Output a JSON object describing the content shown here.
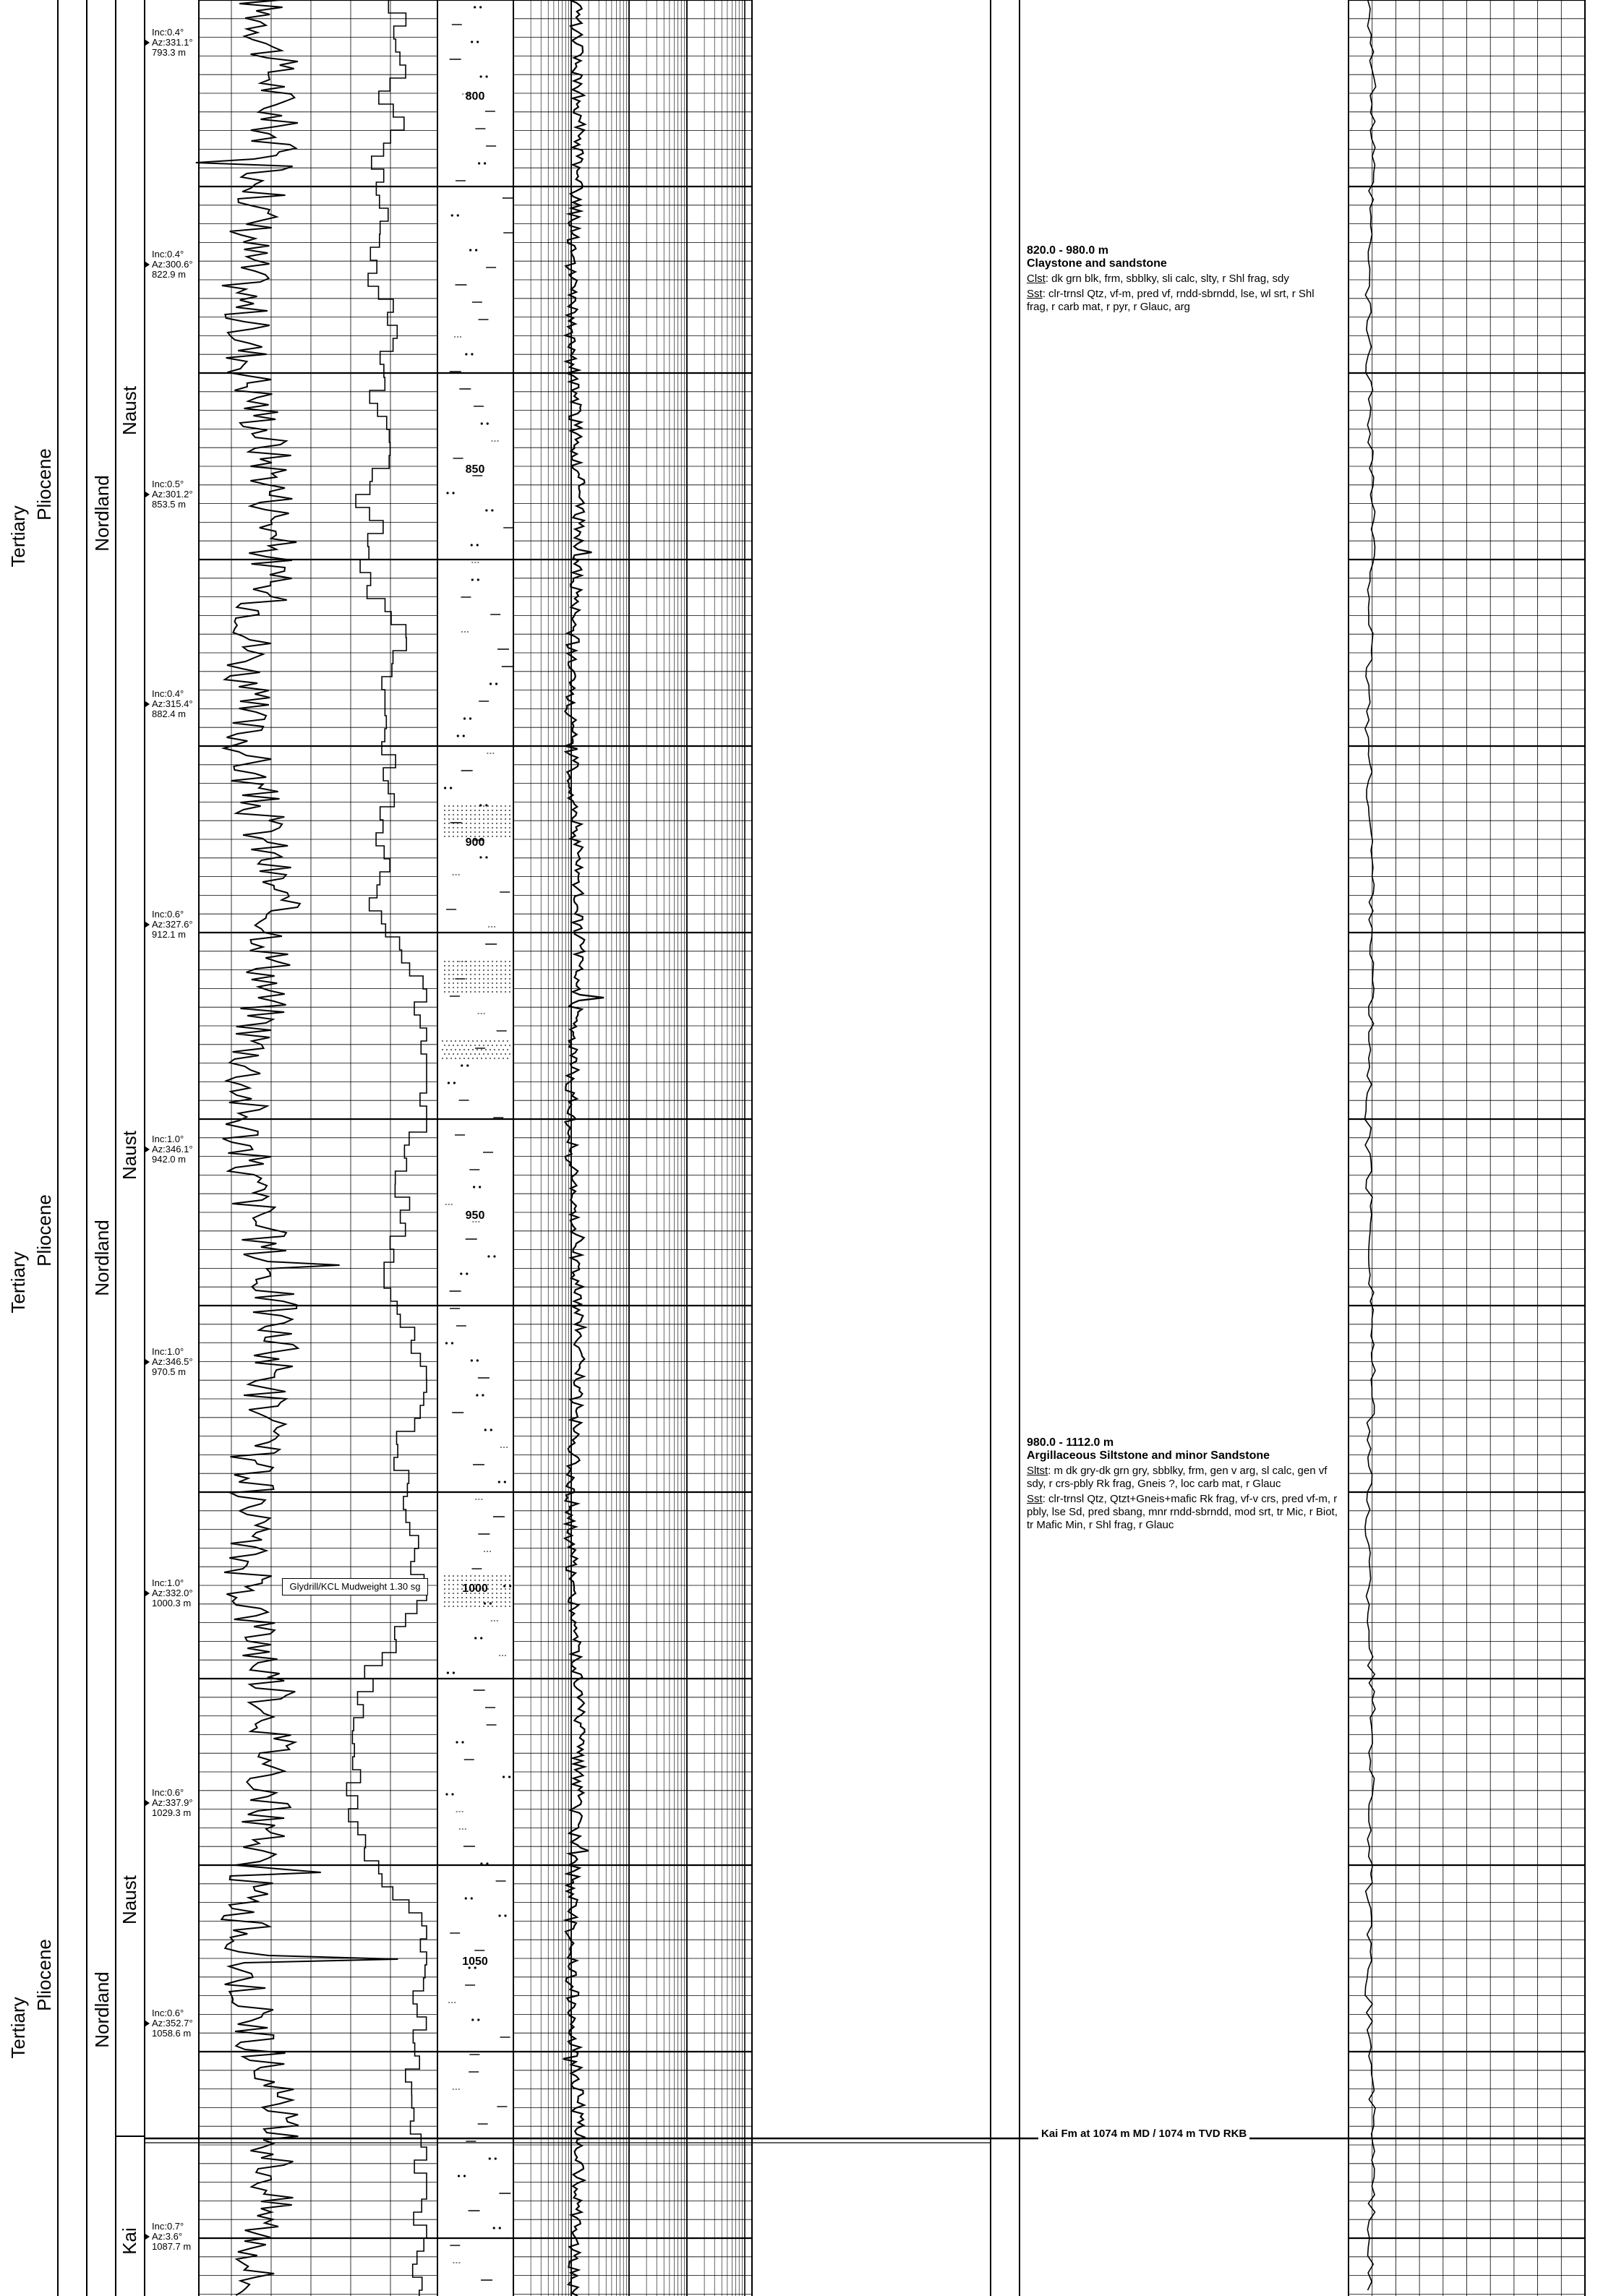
{
  "zones": [
    {
      "era": "Tertiary",
      "epoch": "Pliocene",
      "group": "Nordland",
      "formation": "Naust"
    },
    {
      "era": "Tertiary",
      "epoch": "Pliocene",
      "group": "Nordland",
      "formation": "Naust"
    },
    {
      "era": "Tertiary",
      "epoch": "Pliocene",
      "group": "Nordland",
      "formation": "Naust"
    },
    {
      "formation": "Kai"
    }
  ],
  "surveys": [
    {
      "inc": "Inc:0.4°",
      "az": "Az:331.1°",
      "md": "793.3 m"
    },
    {
      "inc": "Inc:0.4°",
      "az": "Az:300.6°",
      "md": "822.9 m"
    },
    {
      "inc": "Inc:0.5°",
      "az": "Az:301.2°",
      "md": "853.5 m"
    },
    {
      "inc": "Inc:0.4°",
      "az": "Az:315.4°",
      "md": "882.4 m"
    },
    {
      "inc": "Inc:0.6°",
      "az": "Az:327.6°",
      "md": "912.1 m"
    },
    {
      "inc": "Inc:1.0°",
      "az": "Az:346.1°",
      "md": "942.0 m"
    },
    {
      "inc": "Inc:1.0°",
      "az": "Az:346.5°",
      "md": "970.5 m"
    },
    {
      "inc": "Inc:1.0°",
      "az": "Az:332.0°",
      "md": "1000.3 m"
    },
    {
      "inc": "Inc:0.6°",
      "az": "Az:337.9°",
      "md": "1029.3 m"
    },
    {
      "inc": "Inc:0.6°",
      "az": "Az:352.7°",
      "md": "1058.6 m"
    },
    {
      "inc": "Inc:0.7°",
      "az": "Az:3.6°",
      "md": "1087.7 m"
    }
  ],
  "depth_labels": [
    "800",
    "850",
    "900",
    "950",
    "1000",
    "1050"
  ],
  "mud_note": "Glydrill/KCL Mudweight 1.30 sg",
  "descriptions": [
    {
      "range": "820.0 - 980.0 m",
      "title": "Claystone  and sandstone",
      "lines": [
        {
          "abbr": "Clst",
          "text": ": dk grn blk, frm, sbblky, sli calc, slty, r Shl frag, sdy"
        },
        {
          "abbr": "Sst",
          "text": ": clr-trnsl Qtz, vf-m, pred vf, rndd-sbrndd, lse, wl srt, r Shl frag, r carb mat, r pyr, r Glauc, arg"
        }
      ]
    },
    {
      "range": "980.0 - 1112.0 m",
      "title": "Argillaceous Siltstone and minor Sandstone",
      "lines": [
        {
          "abbr": "Sltst",
          "text": ": m dk gry-dk grn gry, sbblky, frm, gen v arg, sl calc, gen vf sdy, r crs-pbly Rk frag, Gneis ?, loc carb mat, r Glauc"
        },
        {
          "abbr": "Sst",
          "text": ": clr-trnsl Qtz, Qtzt+Gneis+mafic Rk frag,  vf-v crs, pred vf-m, r pbly, lse Sd, pred sbang, mnr rndd-sbrndd, mod srt, tr Mic, r Biot, tr Mafic Min,  r Shl frag, r Glauc"
        }
      ]
    }
  ],
  "formation_top": "Kai Fm at 1074 m MD / 1074 m TVD RKB"
}
